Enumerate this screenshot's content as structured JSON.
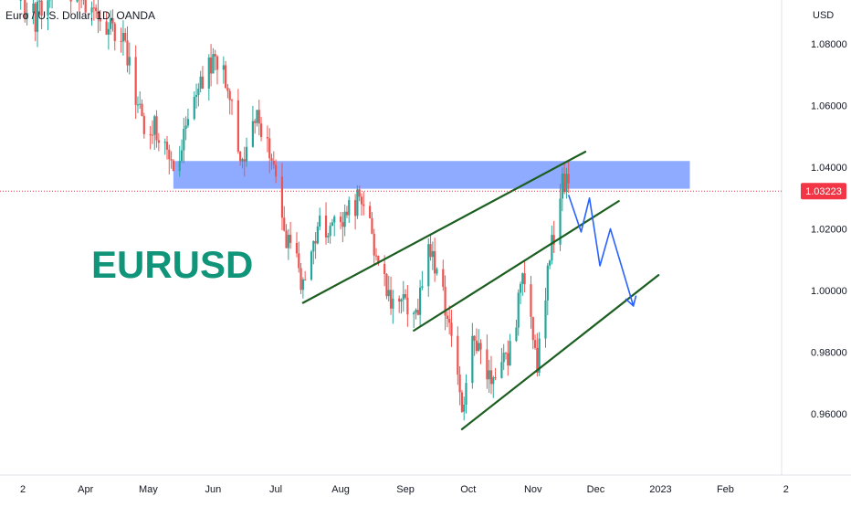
{
  "legend": {
    "title": "Euro / U.S. Dollar, 1D, OANDA"
  },
  "watermark": "EURUSD",
  "currency_label": "USD",
  "colors": {
    "up": "#26a69a",
    "down": "#ef5350",
    "zone": "#7b9cff",
    "channel": "#1b5e20",
    "projection": "#2962ff",
    "price_badge": "#f23645",
    "watermark": "#11957a"
  },
  "chart_data": {
    "type": "candlestick",
    "symbol": "EURUSD",
    "timeframe": "1D",
    "ylim": [
      0.945,
      1.098
    ],
    "y_ticks": [
      1.08,
      1.06,
      1.04,
      1.02,
      1.0,
      0.98,
      0.96
    ],
    "y_tick_labels": [
      "1.08000",
      "1.06000",
      "1.04000",
      "1.02000",
      "1.00000",
      "0.98000",
      "0.96000"
    ],
    "x_ticks": [
      {
        "date": "2022-03-02",
        "label": "2"
      },
      {
        "date": "2022-04-01",
        "label": "Apr"
      },
      {
        "date": "2022-05-01",
        "label": "May"
      },
      {
        "date": "2022-06-01",
        "label": "Jun"
      },
      {
        "date": "2022-07-01",
        "label": "Jul"
      },
      {
        "date": "2022-08-01",
        "label": "Aug"
      },
      {
        "date": "2022-09-01",
        "label": "Sep"
      },
      {
        "date": "2022-10-01",
        "label": "Oct"
      },
      {
        "date": "2022-11-01",
        "label": "Nov"
      },
      {
        "date": "2022-12-01",
        "label": "Dec"
      },
      {
        "date": "2023-01-01",
        "label": "2023"
      },
      {
        "date": "2023-02-01",
        "label": "Feb"
      },
      {
        "date": "2023-03-02",
        "label": "2"
      }
    ],
    "current_price": 1.03223,
    "current_price_label": "1.03223",
    "zone": {
      "from": "2022-05-13",
      "to": "2023-01-15",
      "low": 1.033,
      "high": 1.042
    },
    "channel_lines": [
      {
        "from": {
          "date": "2022-07-14",
          "value": 0.996
        },
        "to": {
          "date": "2022-11-26",
          "value": 1.045
        }
      },
      {
        "from": {
          "date": "2022-09-05",
          "value": 0.987
        },
        "to": {
          "date": "2022-12-12",
          "value": 1.029
        }
      },
      {
        "from": {
          "date": "2022-09-28",
          "value": 0.955
        },
        "to": {
          "date": "2022-12-31",
          "value": 1.005
        }
      }
    ],
    "projection": [
      {
        "date": "2022-11-18",
        "value": 1.031
      },
      {
        "date": "2022-11-24",
        "value": 1.019
      },
      {
        "date": "2022-11-28",
        "value": 1.03
      },
      {
        "date": "2022-12-03",
        "value": 1.008
      },
      {
        "date": "2022-12-08",
        "value": 1.02
      },
      {
        "date": "2022-12-19",
        "value": 0.995
      }
    ],
    "waypoints": [
      {
        "date": "2022-03-01",
        "value": 1.094
      },
      {
        "date": "2022-03-08",
        "value": 1.088
      },
      {
        "date": "2022-03-17",
        "value": 1.1
      },
      {
        "date": "2022-03-28",
        "value": 1.097
      },
      {
        "date": "2022-04-10",
        "value": 1.087
      },
      {
        "date": "2022-04-20",
        "value": 1.079
      },
      {
        "date": "2022-04-28",
        "value": 1.055
      },
      {
        "date": "2022-05-05",
        "value": 1.052
      },
      {
        "date": "2022-05-13",
        "value": 1.039
      },
      {
        "date": "2022-05-20",
        "value": 1.056
      },
      {
        "date": "2022-05-30",
        "value": 1.075
      },
      {
        "date": "2022-06-08",
        "value": 1.068
      },
      {
        "date": "2022-06-14",
        "value": 1.043
      },
      {
        "date": "2022-06-22",
        "value": 1.056
      },
      {
        "date": "2022-06-29",
        "value": 1.045
      },
      {
        "date": "2022-07-06",
        "value": 1.018
      },
      {
        "date": "2022-07-14",
        "value": 1.002
      },
      {
        "date": "2022-07-21",
        "value": 1.02
      },
      {
        "date": "2022-08-01",
        "value": 1.022
      },
      {
        "date": "2022-08-10",
        "value": 1.03
      },
      {
        "date": "2022-08-16",
        "value": 1.018
      },
      {
        "date": "2022-08-24",
        "value": 0.997
      },
      {
        "date": "2022-09-01",
        "value": 0.995
      },
      {
        "date": "2022-09-06",
        "value": 0.991
      },
      {
        "date": "2022-09-12",
        "value": 1.013
      },
      {
        "date": "2022-09-20",
        "value": 0.996
      },
      {
        "date": "2022-09-28",
        "value": 0.96
      },
      {
        "date": "2022-10-04",
        "value": 0.985
      },
      {
        "date": "2022-10-12",
        "value": 0.97
      },
      {
        "date": "2022-10-20",
        "value": 0.978
      },
      {
        "date": "2022-10-27",
        "value": 1.002
      },
      {
        "date": "2022-11-03",
        "value": 0.976
      },
      {
        "date": "2022-11-10",
        "value": 1.015
      },
      {
        "date": "2022-11-15",
        "value": 1.036
      },
      {
        "date": "2022-11-18",
        "value": 1.032
      }
    ]
  }
}
